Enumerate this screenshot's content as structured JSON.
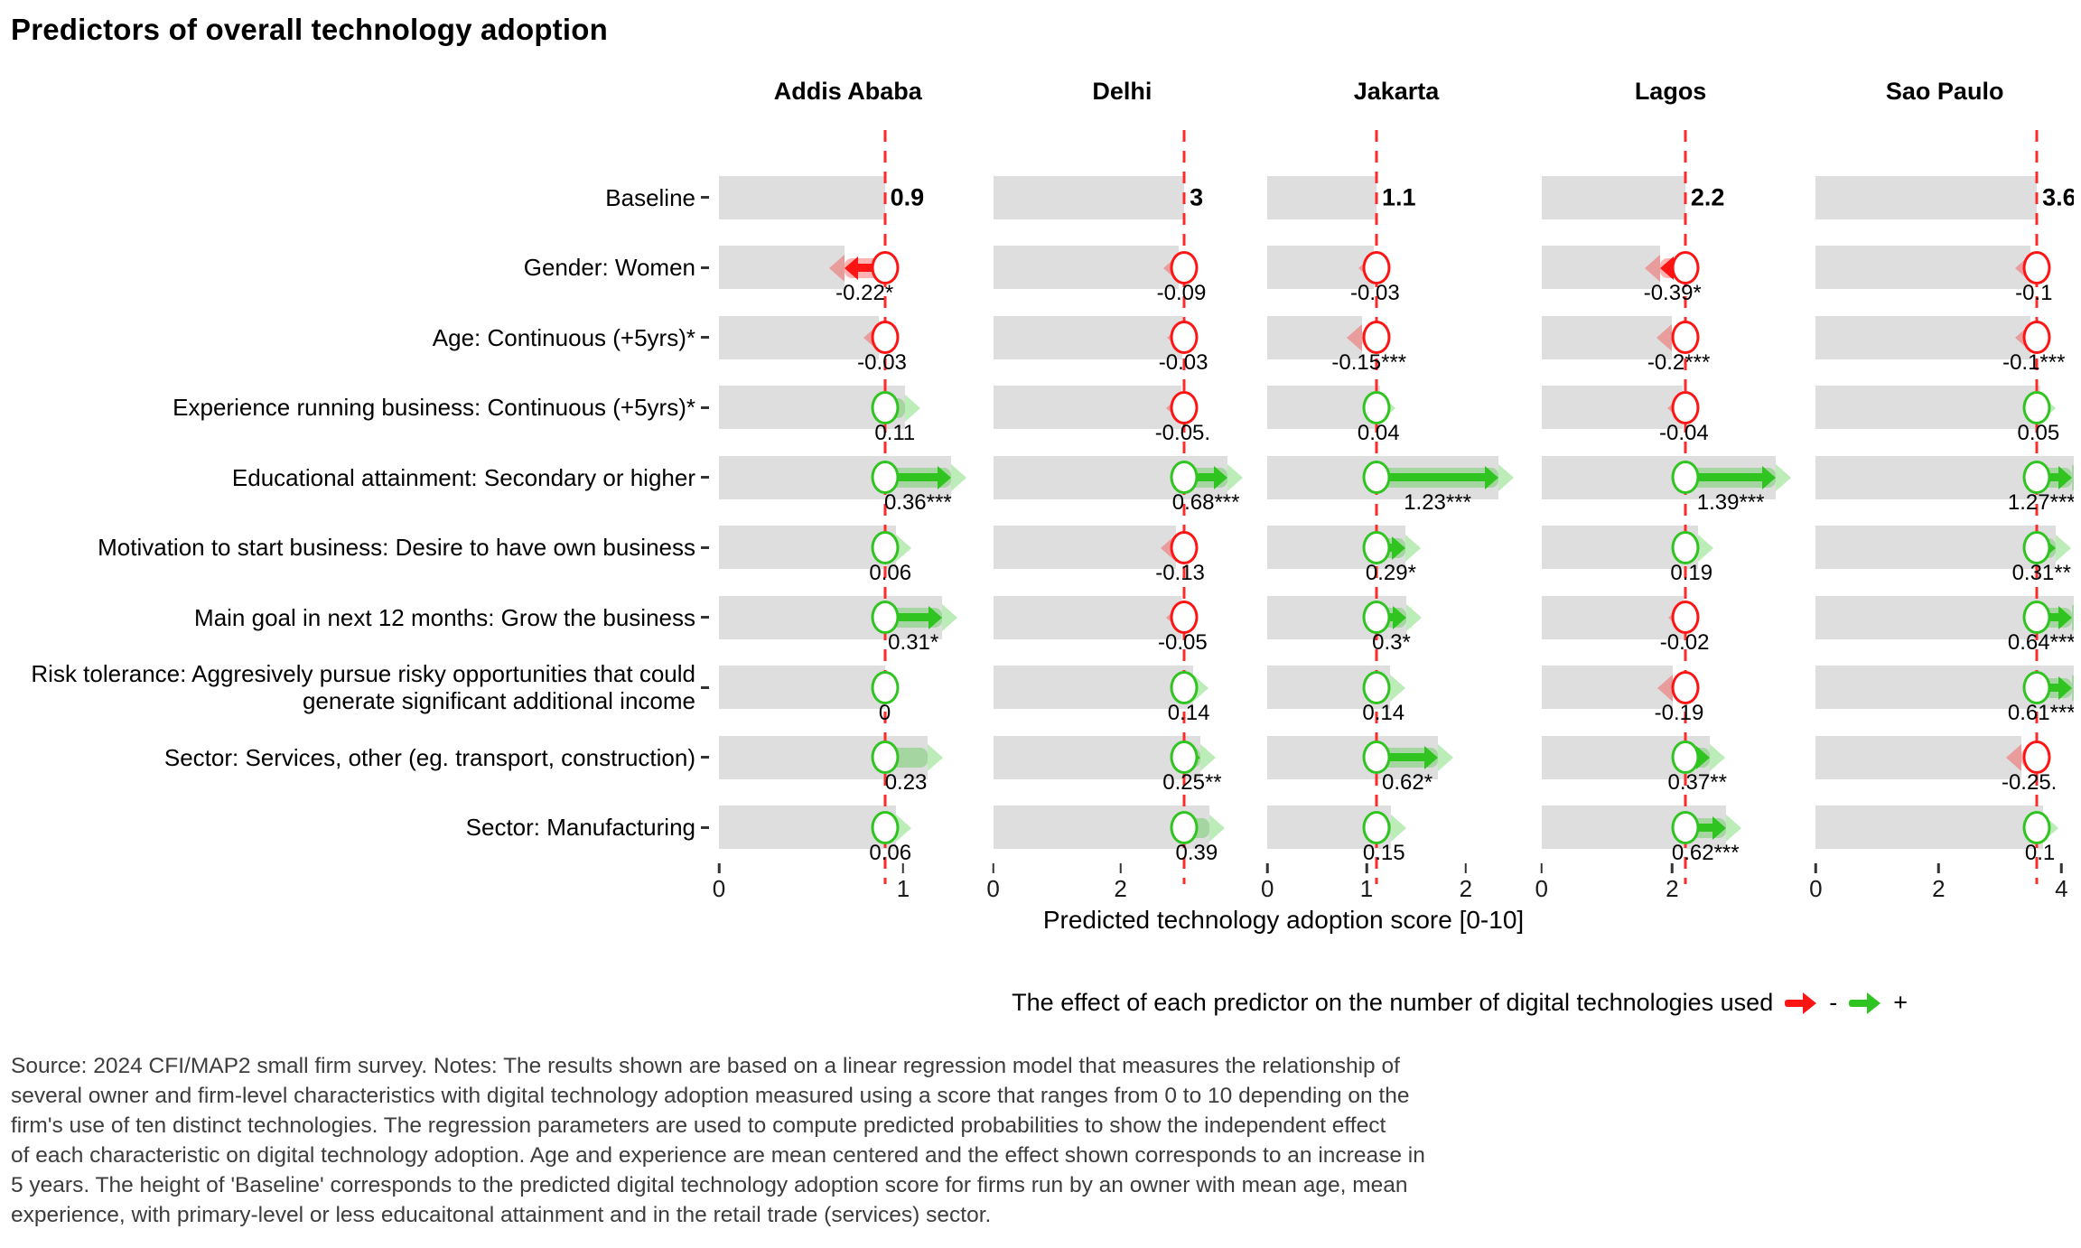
{
  "title": "Predictors of overall technology adoption",
  "xlabel": "Predicted technology adoption score [0-10]",
  "legend": {
    "text": "The effect of each predictor on the number of digital technologies used",
    "neg_label": "-",
    "pos_label": "+"
  },
  "colors": {
    "bar": "#dedede",
    "negative": "#ff1414",
    "positive": "#2fc41f",
    "baseline_line": "#ff2a2a",
    "axis": "#333333"
  },
  "source": {
    "lines": [
      "Source: 2024 CFI/MAP2 small firm survey. Notes: The results shown are based on a linear regression model that measures the relationship of",
      "several owner and firm-level characteristics with digital technology adoption measured using a score that ranges from 0 to 10 depending on the",
      "firm's use of ten distinct technologies. The regression parameters are used to compute predicted probabilities to show the independent effect",
      "of each characteristic on digital technology adoption. Age and experience are mean centered and the effect shown corresponds to an increase in",
      "5 years. The height of 'Baseline' corresponds to the predicted digital technology adoption score for firms run by an owner with mean age, mean",
      "experience, with primary-level or less educaitonal attainment and in the retail trade (services) sector."
    ]
  },
  "chart_data": {
    "type": "bar",
    "title": "Predictors of overall technology adoption",
    "xlabel": "Predicted technology adoption score [0-10]",
    "legend_note": "Red arrow = negative effect, green arrow = positive effect; bar length = baseline + effect; dashed red line marks the baseline score",
    "rows": [
      "Baseline",
      "Gender: Women",
      "Age: Continuous (+5yrs)*",
      "Experience running business: Continuous (+5yrs)*",
      "Educational attainment: Secondary or higher",
      "Motivation to start business: Desire to have own business",
      "Main goal in next 12 months: Grow the business",
      "Risk tolerance: Aggresively pursue risky opportunities that could generate significant additional income",
      "Sector: Services, other (eg. transport, construction)",
      "Sector: Manufacturing"
    ],
    "cities": [
      {
        "name": "Addis Ababa",
        "baseline": 0.9,
        "baseline_label": "0.9",
        "xmax": 1.4,
        "ticks": [
          0,
          1
        ],
        "effects": [
          {
            "value": -0.22,
            "label": "-0.22*"
          },
          {
            "value": -0.03,
            "label": "-0.03"
          },
          {
            "value": 0.11,
            "label": "0.11"
          },
          {
            "value": 0.36,
            "label": "0.36***"
          },
          {
            "value": 0.06,
            "label": "0.06"
          },
          {
            "value": 0.31,
            "label": "0.31*"
          },
          {
            "value": 0,
            "label": "0"
          },
          {
            "value": 0.23,
            "label": "0.23"
          },
          {
            "value": 0.06,
            "label": "0.06"
          }
        ]
      },
      {
        "name": "Delhi",
        "baseline": 3,
        "baseline_label": "3",
        "xmax": 4.05,
        "ticks": [
          0,
          2
        ],
        "effects": [
          {
            "value": -0.09,
            "label": "-0.09"
          },
          {
            "value": -0.03,
            "label": "-0.03"
          },
          {
            "value": -0.05,
            "label": "-0.05."
          },
          {
            "value": 0.68,
            "label": "0.68***"
          },
          {
            "value": -0.13,
            "label": "-0.13"
          },
          {
            "value": -0.05,
            "label": "-0.05"
          },
          {
            "value": 0.14,
            "label": "0.14"
          },
          {
            "value": 0.25,
            "label": "0.25**"
          },
          {
            "value": 0.39,
            "label": "0.39"
          }
        ]
      },
      {
        "name": "Jakarta",
        "baseline": 1.1,
        "baseline_label": "1.1",
        "xmax": 2.6,
        "ticks": [
          0,
          1,
          2
        ],
        "effects": [
          {
            "value": -0.03,
            "label": "-0.03"
          },
          {
            "value": -0.15,
            "label": "-0.15***"
          },
          {
            "value": 0.04,
            "label": "0.04"
          },
          {
            "value": 1.23,
            "label": "1.23***"
          },
          {
            "value": 0.29,
            "label": "0.29*"
          },
          {
            "value": 0.3,
            "label": "0.3*"
          },
          {
            "value": 0.14,
            "label": "0.14"
          },
          {
            "value": 0.62,
            "label": "0.62*"
          },
          {
            "value": 0.15,
            "label": "0.15"
          }
        ]
      },
      {
        "name": "Lagos",
        "baseline": 2.2,
        "baseline_label": "2.2",
        "xmax": 3.95,
        "ticks": [
          0,
          2
        ],
        "effects": [
          {
            "value": -0.39,
            "label": "-0.39*"
          },
          {
            "value": -0.2,
            "label": "-0.2***"
          },
          {
            "value": -0.04,
            "label": "-0.04"
          },
          {
            "value": 1.39,
            "label": "1.39***"
          },
          {
            "value": 0.19,
            "label": "0.19"
          },
          {
            "value": -0.02,
            "label": "-0.02"
          },
          {
            "value": -0.19,
            "label": "-0.19"
          },
          {
            "value": 0.37,
            "label": "0.37**"
          },
          {
            "value": 0.62,
            "label": "0.62***"
          }
        ]
      },
      {
        "name": "Sao Paulo",
        "baseline": 3.6,
        "baseline_label": "3.6",
        "xmax": 4.2,
        "ticks": [
          0,
          2,
          4
        ],
        "effects": [
          {
            "value": -0.1,
            "label": "-0.1"
          },
          {
            "value": -0.1,
            "label": "-0.1***"
          },
          {
            "value": 0.05,
            "label": "0.05"
          },
          {
            "value": 1.27,
            "label": "1.27***"
          },
          {
            "value": 0.31,
            "label": "0.31**"
          },
          {
            "value": 0.64,
            "label": "0.64***"
          },
          {
            "value": 0.61,
            "label": "0.61***"
          },
          {
            "value": -0.25,
            "label": "-0.25."
          },
          {
            "value": 0.1,
            "label": "0.1"
          }
        ]
      }
    ]
  }
}
